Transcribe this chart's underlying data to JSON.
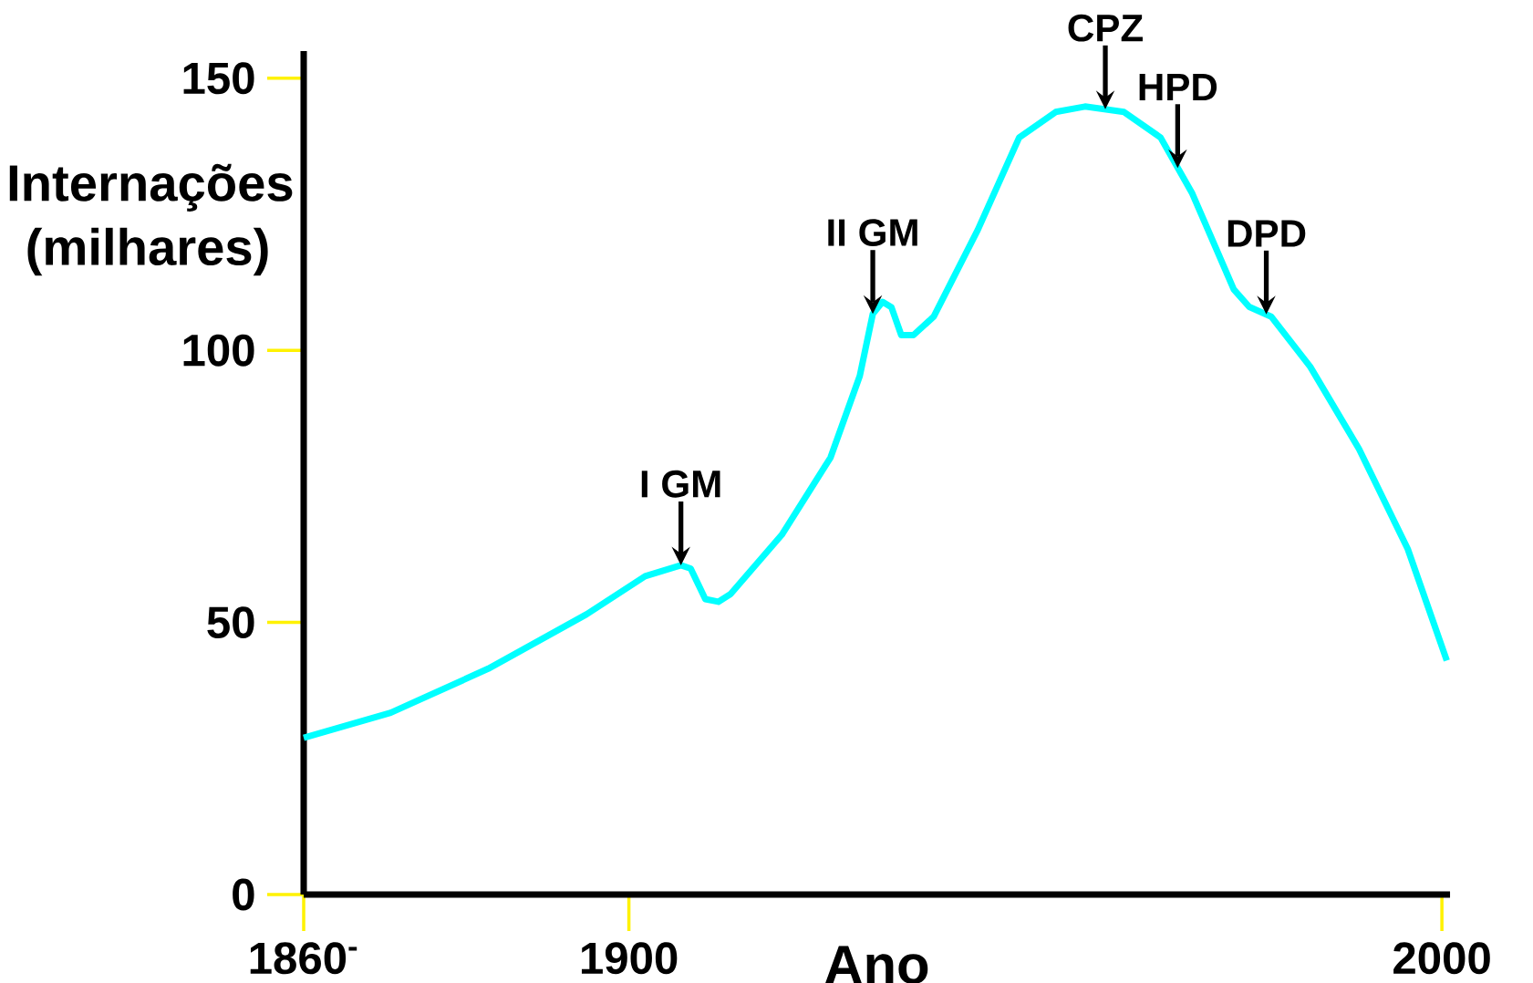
{
  "chart_data": {
    "type": "line",
    "xlabel": "Ano",
    "ylabel": "Internações (milhares)",
    "x": [
      1860.0,
      1870.7,
      1882.7,
      1894.8,
      1902.0,
      1906.4,
      1907.6,
      1909.4,
      1911.0,
      1912.5,
      1918.8,
      1924.8,
      1928.4,
      1930.0,
      1931.2,
      1932.3,
      1933.5,
      1935.0,
      1937.5,
      1942.9,
      1948.0,
      1952.5,
      1956.1,
      1960.9,
      1965.4,
      1969.3,
      1974.4,
      1976.3,
      1979.0,
      1983.8,
      1989.8,
      1995.8,
      2000.6
    ],
    "series": [
      {
        "color": "#00ffff",
        "values": [
          28.8,
          33.4,
          41.5,
          51.5,
          58.5,
          60.5,
          59.9,
          54.3,
          53.8,
          55.2,
          66.1,
          80.3,
          95.3,
          106.7,
          108.9,
          107.9,
          102.8,
          102.8,
          106.2,
          122.1,
          139.1,
          143.8,
          144.8,
          143.8,
          139.1,
          128.8,
          111.2,
          108.0,
          106.2,
          97.0,
          81.9,
          63.5,
          43.0
        ]
      }
    ],
    "xlim": [
      1860,
      2001
    ],
    "ylim": [
      0,
      155
    ],
    "xticks": [
      {
        "value": 1860,
        "label": "1860$^{-}$"
      },
      1900,
      2000
    ],
    "yticks": [
      0,
      50,
      100,
      150
    ],
    "grid": false,
    "marker": "none",
    "line_style": "solid",
    "annotations": [
      {
        "text": "I GM",
        "x": 1906.4,
        "y": 60.5
      },
      {
        "text": "II GM",
        "x": 1930.0,
        "y": 106.7
      },
      {
        "text": "CPZ",
        "x": 1958.6,
        "y": 144.3
      },
      {
        "text": "HPD",
        "x": 1967.5,
        "y": 133.5
      },
      {
        "text": "DPD",
        "x": 1978.4,
        "y": 106.6
      }
    ]
  }
}
